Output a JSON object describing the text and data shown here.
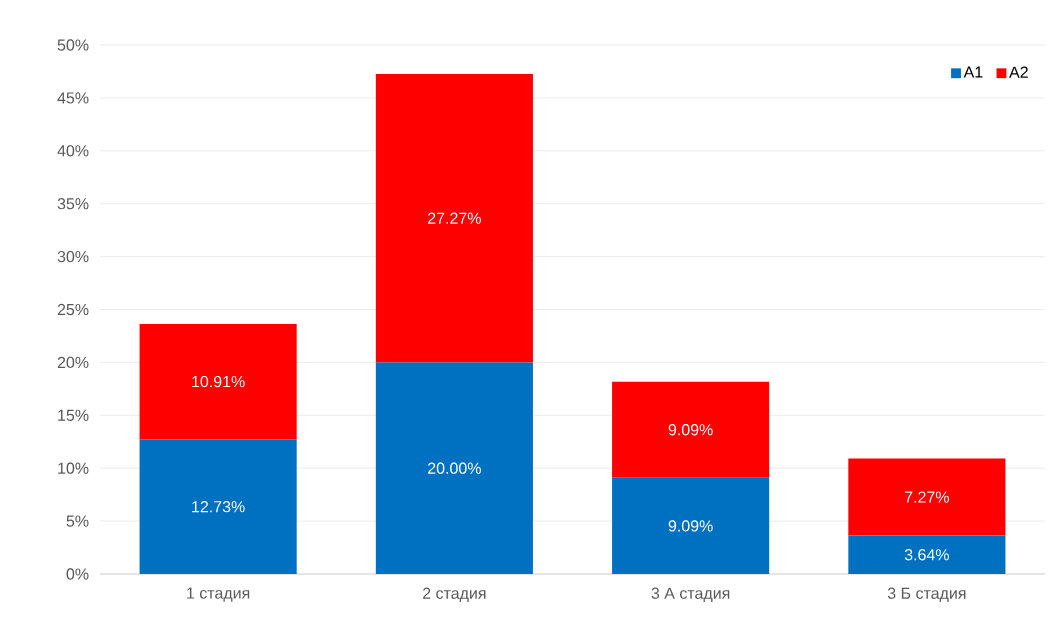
{
  "chart_data": {
    "type": "bar",
    "stacked": true,
    "categories": [
      "1 стадия",
      "2 стадия",
      "3 А стадия",
      "3 Б стадия"
    ],
    "series": [
      {
        "name": "A1",
        "color": "#0070c0",
        "values": [
          12.73,
          20.0,
          9.09,
          3.64
        ],
        "value_labels": [
          "12.73%",
          "20.00%",
          "9.09%",
          "3.64%"
        ]
      },
      {
        "name": "A2",
        "color": "#ff0000",
        "values": [
          10.91,
          27.27,
          9.09,
          7.27
        ],
        "value_labels": [
          "10.91%",
          "27.27%",
          "9.09%",
          "7.27%"
        ]
      }
    ],
    "ylim": [
      0,
      50
    ],
    "yticks": [
      {
        "value": 0,
        "label": "0%"
      },
      {
        "value": 5,
        "label": "5%"
      },
      {
        "value": 10,
        "label": "10%"
      },
      {
        "value": 15,
        "label": "15%"
      },
      {
        "value": 20,
        "label": "20%"
      },
      {
        "value": 25,
        "label": "25%"
      },
      {
        "value": 30,
        "label": "30%"
      },
      {
        "value": 35,
        "label": "35%"
      },
      {
        "value": 40,
        "label": "40%"
      },
      {
        "value": 45,
        "label": "45%"
      },
      {
        "value": 50,
        "label": "50%"
      }
    ],
    "grid": "y",
    "legend": "top right"
  }
}
